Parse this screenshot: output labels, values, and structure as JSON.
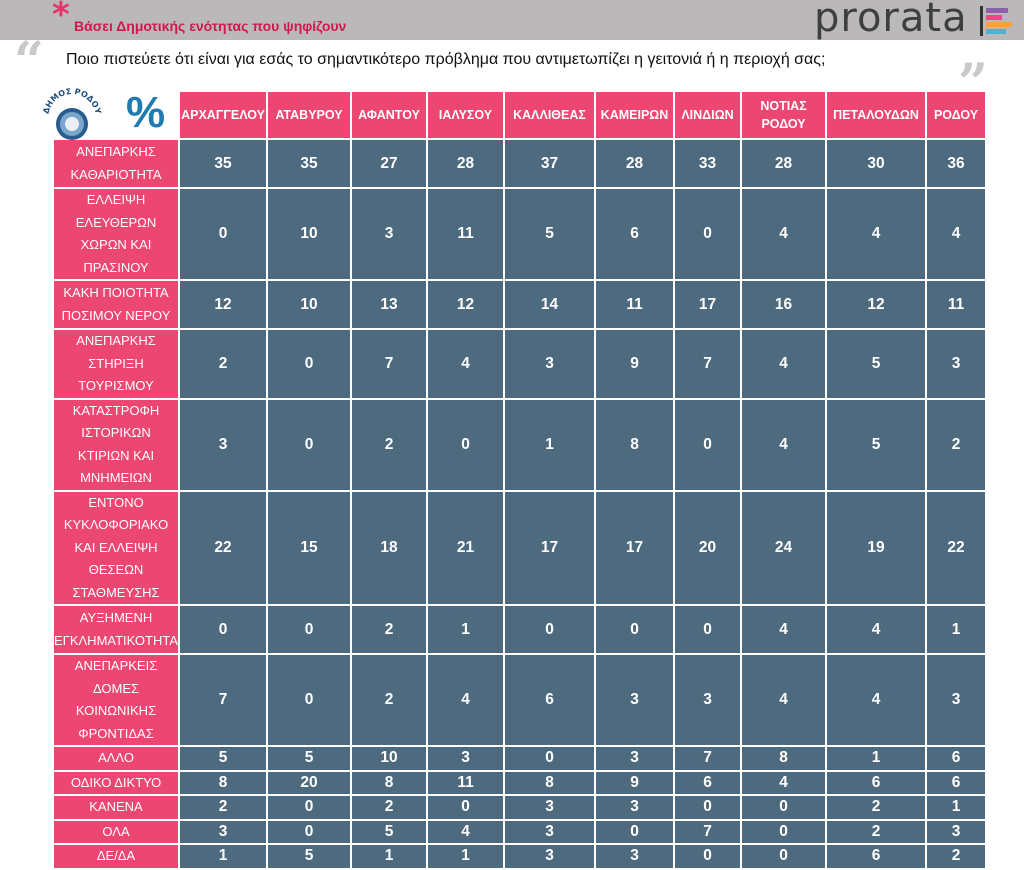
{
  "header": {
    "asterisk": "*",
    "subtitle": "Βάσει Δημοτικής ενότητας που ψηφίζουν",
    "brand": "prorata",
    "question": "Ποιο πιστεύετε ότι είναι για εσάς το σημαντικότερο πρόβλημα που αντιμετωπίζει η γειτονιά ή η περιοχή σας;",
    "quote_open": "“",
    "quote_close": "”",
    "logo_icon": "dimos-rodou-seal-icon",
    "logo_text": "ΔΗΜΟΣ ΡΟΔΟΥ",
    "percent_symbol": "%"
  },
  "colors": {
    "header_pink": "#ec4672",
    "cell_slate": "#4e6a7e",
    "topbar_gray": "#bbb8b9",
    "subtitle_red": "#d1174f",
    "percent_blue": "#1f7bb0"
  },
  "chart_data": {
    "type": "table",
    "unit": "%",
    "columns": [
      "ΑΡΧΑΓΓΕΛΟΥ",
      "ΑΤΑΒΥΡΟΥ",
      "ΑΦΑΝΤΟΥ",
      "ΙΑΛΥΣΟΥ",
      "ΚΑΛΛΙΘΕΑΣ",
      "ΚΑΜΕΙΡΩΝ",
      "ΛΙΝΔΙΩΝ",
      "ΝΟΤΙΑΣ ΡΟΔΟΥ",
      "ΠΕΤΑΛΟΥΔΩΝ",
      "ΡΟΔΟΥ"
    ],
    "rows": [
      {
        "label": "ΑΝΕΠΑΡΚΗΣ ΚΑΘΑΡΙΟΤΗΤΑ",
        "values": [
          35,
          35,
          27,
          28,
          37,
          28,
          33,
          28,
          30,
          36
        ]
      },
      {
        "label": "ΕΛΛΕΙΨΗ ΕΛΕΥΘΕΡΩΝ ΧΩΡΩΝ ΚΑΙ ΠΡΑΣΙΝΟΥ",
        "values": [
          0,
          10,
          3,
          11,
          5,
          6,
          0,
          4,
          4,
          4
        ]
      },
      {
        "label": "ΚΑΚΗ ΠΟΙΟΤΗΤΑ ΠΟΣΙΜΟΥ ΝΕΡΟΥ",
        "values": [
          12,
          10,
          13,
          12,
          14,
          11,
          17,
          16,
          12,
          11
        ]
      },
      {
        "label": "ΑΝΕΠΑΡΚΗΣ ΣΤΗΡΙΞΗ ΤΟΥΡΙΣΜΟΥ",
        "values": [
          2,
          0,
          7,
          4,
          3,
          9,
          7,
          4,
          5,
          3
        ]
      },
      {
        "label": "ΚΑΤΑΣΤΡΟΦΗ ΙΣΤΟΡΙΚΩΝ ΚΤΙΡΙΩΝ ΚΑΙ ΜΝΗΜΕΙΩΝ",
        "values": [
          3,
          0,
          2,
          0,
          1,
          8,
          0,
          4,
          5,
          2
        ]
      },
      {
        "label": "ΕΝΤΟΝΟ ΚΥΚΛΟΦΟΡΙΑΚΟ ΚΑΙ ΕΛΛΕΙΨΗ ΘΕΣΕΩΝ ΣΤΑΘΜΕΥΣΗΣ",
        "values": [
          22,
          15,
          18,
          21,
          17,
          17,
          20,
          24,
          19,
          22
        ]
      },
      {
        "label": "ΑΥΞΗΜΕΝΗ ΕΓΚΛΗΜΑΤΙΚΟΤΗΤΑ",
        "values": [
          0,
          0,
          2,
          1,
          0,
          0,
          0,
          4,
          4,
          1
        ]
      },
      {
        "label": "ΑΝΕΠΑΡΚΕΙΣ ΔΟΜΕΣ ΚΟΙΝΩΝΙΚΗΣ ΦΡΟΝΤΙΔΑΣ",
        "values": [
          7,
          0,
          2,
          4,
          6,
          3,
          3,
          4,
          4,
          3
        ]
      },
      {
        "label": "ΑΛΛΟ",
        "values": [
          5,
          5,
          10,
          3,
          0,
          3,
          7,
          8,
          1,
          6
        ]
      },
      {
        "label": "ΟΔΙΚΟ ΔΙΚΤΥΟ",
        "values": [
          8,
          20,
          8,
          11,
          8,
          9,
          6,
          4,
          6,
          6
        ]
      },
      {
        "label": "ΚΑΝΕΝΑ",
        "values": [
          2,
          0,
          2,
          0,
          3,
          3,
          0,
          0,
          2,
          1
        ]
      },
      {
        "label": "ΟΛΑ",
        "values": [
          3,
          0,
          5,
          4,
          3,
          0,
          7,
          0,
          2,
          3
        ]
      },
      {
        "label": "ΔΕ/ΔΑ",
        "values": [
          1,
          5,
          1,
          1,
          3,
          3,
          0,
          0,
          6,
          2
        ]
      }
    ]
  }
}
